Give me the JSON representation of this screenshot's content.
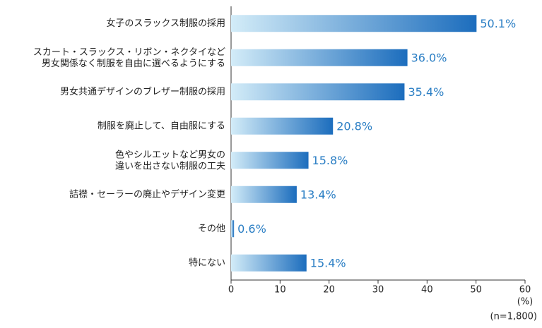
{
  "chart_data": {
    "type": "hbar",
    "categories": [
      "女子のスラックス制服の採用",
      "スカート・スラックス・リボン・ネクタイなど\n男女関係なく制服を自由に選べるようにする",
      "男女共通デザインのブレザー制服の採用",
      "制服を廃止して、自由服にする",
      "色やシルエットなど男女の\n違いを出さない制服の工夫",
      "詰襟・セーラーの廃止やデザイン変更",
      "その他",
      "特にない"
    ],
    "values": [
      50.1,
      36.0,
      35.4,
      20.8,
      15.8,
      13.4,
      0.6,
      15.4
    ],
    "value_labels": [
      "50.1%",
      "36.0%",
      "35.4%",
      "20.8%",
      "15.8%",
      "13.4%",
      "0.6%",
      "15.4%"
    ],
    "gradient": [
      "#d3ecf8",
      "#1c6dbd"
    ],
    "label_color": "#2a7ec4",
    "xlim": [
      0,
      60
    ],
    "xticks": [
      0,
      10,
      20,
      30,
      40,
      50,
      60
    ],
    "x_unit": "(%)",
    "note": "(n=1,800)"
  }
}
